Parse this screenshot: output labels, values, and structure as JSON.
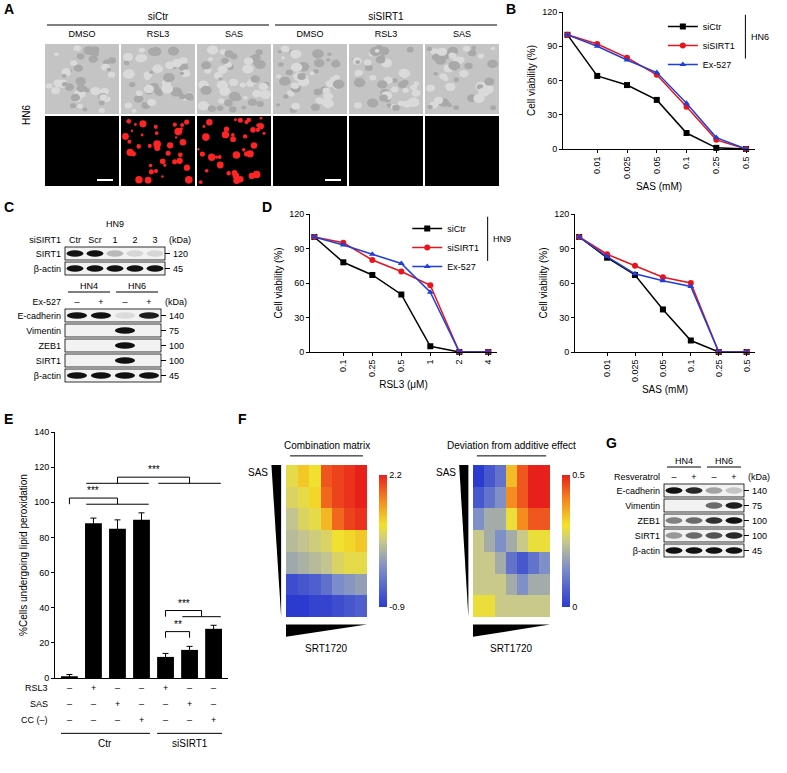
{
  "panel_labels": [
    "A",
    "B",
    "C",
    "D",
    "E",
    "F",
    "G"
  ],
  "panel_A": {
    "groups": [
      {
        "label": "siCtr",
        "columns": [
          0,
          1,
          2
        ]
      },
      {
        "label": "siSIRT1",
        "columns": [
          3,
          4,
          5
        ]
      }
    ],
    "columns": [
      "DMSO",
      "RSL3",
      "SAS",
      "DMSO",
      "RSL3",
      "SAS"
    ],
    "row_label": "HN6",
    "lipid_peroxidation_signal": [
      false,
      true,
      true,
      false,
      false,
      false
    ]
  },
  "panel_C": {
    "blots": [
      {
        "headers": [
          {
            "label": "HN9",
            "lanes": [
              0,
              1,
              2,
              3,
              4
            ]
          }
        ],
        "lanes": {
          "label": "siSIRT1",
          "values": [
            "Ctr",
            "Scr",
            "1",
            "2",
            "3"
          ]
        },
        "unit": "(kDa)",
        "rows": [
          {
            "label": "SIRT1",
            "kda": "120",
            "bands": [
              1,
              1,
              0.25,
              0.12,
              0.12
            ]
          },
          {
            "label": "β-actin",
            "kda": "45",
            "bands": [
              1,
              1,
              1,
              1,
              1
            ]
          }
        ]
      },
      {
        "headers": [
          {
            "label": "HN4",
            "lanes": [
              0,
              1
            ]
          },
          {
            "label": "HN6",
            "lanes": [
              2,
              3
            ]
          }
        ],
        "lanes": {
          "label": "Ex-527",
          "values": [
            "–",
            "+",
            "–",
            "+"
          ]
        },
        "unit": "(kDa)",
        "rows": [
          {
            "label": "E-cadherin",
            "kda": "140",
            "bands": [
              1,
              1,
              0.1,
              0.95
            ]
          },
          {
            "label": "Vimentin",
            "kda": "75",
            "bands": [
              0,
              0,
              1,
              0
            ]
          },
          {
            "label": "ZEB1",
            "kda": "100",
            "bands": [
              0,
              0,
              1,
              0
            ]
          },
          {
            "label": "SIRT1",
            "kda": "100",
            "bands": [
              0,
              0,
              1,
              0
            ]
          },
          {
            "label": "β-actin",
            "kda": "45",
            "bands": [
              1,
              1,
              1,
              1
            ]
          }
        ]
      }
    ]
  },
  "panel_G": {
    "blots": [
      {
        "headers": [
          {
            "label": "HN4",
            "lanes": [
              0,
              1
            ]
          },
          {
            "label": "HN6",
            "lanes": [
              2,
              3
            ]
          }
        ],
        "lanes": {
          "label": "Resveratrol",
          "values": [
            "–",
            "+",
            "–",
            "+"
          ]
        },
        "unit": "(kDa)",
        "rows": [
          {
            "label": "E-cadherin",
            "kda": "140",
            "bands": [
              1,
              0.9,
              0.35,
              0.2
            ]
          },
          {
            "label": "Vimentin",
            "kda": "75",
            "bands": [
              0,
              0,
              0.6,
              0.95
            ]
          },
          {
            "label": "ZEB1",
            "kda": "100",
            "bands": [
              0.5,
              0.6,
              0.85,
              1
            ]
          },
          {
            "label": "SIRT1",
            "kda": "100",
            "bands": [
              0.4,
              0.6,
              0.7,
              0.9
            ]
          },
          {
            "label": "β-actin",
            "kda": "45",
            "bands": [
              1,
              1,
              1,
              1
            ]
          }
        ]
      }
    ]
  },
  "chart_data": [
    {
      "type": "line",
      "x_label": "SAS (mM)",
      "y_label": "Cell viability (%)",
      "categories": [
        null,
        "0.01",
        "0.025",
        "0.05",
        "0.1",
        "0.25",
        "0.5"
      ],
      "ylim": [
        0,
        120
      ],
      "yticks": [
        0,
        30,
        60,
        90,
        120
      ],
      "legend": "upper right",
      "annotations": [
        "HN6"
      ],
      "series": [
        {
          "name": "siCtr",
          "color": "#000000",
          "marker": "square",
          "values": [
            100,
            64,
            56,
            43,
            14,
            1,
            0
          ]
        },
        {
          "name": "siSIRT1",
          "color": "#e8141c",
          "marker": "circle",
          "values": [
            100,
            92,
            80,
            65,
            37,
            8,
            0
          ]
        },
        {
          "name": "Ex-527",
          "color": "#1f3fd8",
          "marker": "triangle-up",
          "values": [
            100,
            90,
            78,
            67,
            40,
            10,
            0
          ]
        }
      ]
    },
    {
      "type": "line",
      "x_label": "RSL3 (μM)",
      "y_label": "Cell viability (%)",
      "categories": [
        null,
        "0.1",
        "0.25",
        "0.5",
        "1",
        "2",
        "4"
      ],
      "ylim": [
        0,
        120
      ],
      "yticks": [
        0,
        30,
        60,
        90,
        120
      ],
      "legend": "upper right",
      "annotations": [
        "HN9"
      ],
      "series": [
        {
          "name": "siCtr",
          "color": "#000000",
          "marker": "square",
          "values": [
            100,
            78,
            67,
            50,
            5,
            0,
            0
          ]
        },
        {
          "name": "siSIRT1",
          "color": "#e8141c",
          "marker": "circle",
          "values": [
            100,
            95,
            80,
            70,
            58,
            0,
            0
          ]
        },
        {
          "name": "Ex-527",
          "color": "#1f3fd8",
          "marker": "triangle-up",
          "values": [
            100,
            93,
            85,
            77,
            52,
            0,
            0
          ]
        }
      ]
    },
    {
      "type": "line",
      "x_label": "SAS (mM)",
      "y_label": "Cell viability (%)",
      "categories": [
        null,
        "0.01",
        "0.025",
        "0.05",
        "0.1",
        "0.25",
        "0.5"
      ],
      "ylim": [
        0,
        120
      ],
      "yticks": [
        0,
        30,
        60,
        90,
        120
      ],
      "series": [
        {
          "name": "siCtr",
          "color": "#000000",
          "marker": "square",
          "values": [
            100,
            82,
            67,
            37,
            10,
            0,
            0
          ]
        },
        {
          "name": "siSIRT1",
          "color": "#e8141c",
          "marker": "circle",
          "values": [
            100,
            85,
            75,
            65,
            60,
            0,
            0
          ]
        },
        {
          "name": "Ex-527",
          "color": "#1f3fd8",
          "marker": "triangle-up",
          "values": [
            100,
            83,
            68,
            62,
            57,
            0,
            0
          ]
        }
      ]
    },
    {
      "type": "bar",
      "y_label": "%Cells undergoing lipid peroxidation",
      "categories": [
        null,
        null,
        null,
        null,
        null,
        null,
        null
      ],
      "values": [
        1,
        88,
        85,
        90,
        12,
        16,
        28
      ],
      "errors": [
        1,
        3,
        5,
        4,
        2,
        2,
        2
      ],
      "color": "#000000",
      "ylim": [
        0,
        140
      ],
      "yticks": [
        0,
        20,
        40,
        60,
        80,
        100,
        120,
        140
      ],
      "tick_labels": "y",
      "conditions": [
        {
          "label": "RSL3",
          "marks": [
            "–",
            "+",
            "–",
            "–",
            "+",
            "–",
            "–"
          ]
        },
        {
          "label": "SAS",
          "marks": [
            "–",
            "–",
            "+",
            "–",
            "–",
            "+",
            "–"
          ]
        },
        {
          "label": "CC (–)",
          "marks": [
            "–",
            "–",
            "–",
            "+",
            "–",
            "–",
            "+"
          ]
        }
      ],
      "groups": [
        {
          "label": "Ctr",
          "bars": [
            0,
            1,
            2,
            3
          ]
        },
        {
          "label": "siSIRT1",
          "bars": [
            4,
            5,
            6
          ]
        }
      ],
      "significance": [
        {
          "from": [
            0
          ],
          "to": [
            1,
            2,
            3
          ],
          "text": "***"
        },
        {
          "from": [
            1,
            2,
            3
          ],
          "to": [
            4,
            5,
            6
          ],
          "text": "***"
        },
        {
          "from": [
            4
          ],
          "to": [
            5
          ],
          "text": "**"
        },
        {
          "from": [
            4
          ],
          "to": [
            5,
            6
          ],
          "text": "***"
        }
      ]
    },
    {
      "type": "heatmap",
      "title": "Combination matrix",
      "x_label": "SRT1720",
      "y_label": "SAS",
      "tick_labels": false,
      "z": [
        [
          0.9,
          1.2,
          1.0,
          1.9,
          2.0,
          2.1,
          2.2
        ],
        [
          0.8,
          0.9,
          1.1,
          1.8,
          2.0,
          2.1,
          2.2
        ],
        [
          0.6,
          0.8,
          0.9,
          1.3,
          1.8,
          2.0,
          2.1
        ],
        [
          0.5,
          0.6,
          0.7,
          0.8,
          1.0,
          1.1,
          1.2
        ],
        [
          0.3,
          0.4,
          0.5,
          0.6,
          0.8,
          0.9,
          0.9
        ],
        [
          -0.7,
          -0.6,
          -0.5,
          -0.3,
          0.0,
          0.1,
          0.2
        ],
        [
          -0.9,
          -0.9,
          -0.8,
          -0.8,
          -0.7,
          -0.6,
          -0.5
        ]
      ],
      "zlim": [
        -0.9,
        2.2
      ],
      "zticks": [
        -0.9,
        2.2
      ]
    },
    {
      "type": "heatmap",
      "title": "Deviation from additive effect",
      "x_label": "SRT1720",
      "y_label": "SAS",
      "tick_labels": false,
      "z": [
        [
          0.0,
          0.05,
          0.1,
          0.35,
          0.45,
          0.5,
          0.5
        ],
        [
          0.05,
          0.1,
          0.15,
          0.4,
          0.45,
          0.5,
          0.5
        ],
        [
          0.15,
          0.2,
          0.2,
          0.3,
          0.4,
          0.45,
          0.45
        ],
        [
          0.25,
          0.2,
          0.15,
          0.2,
          0.25,
          0.3,
          0.3
        ],
        [
          0.25,
          0.25,
          0.2,
          0.1,
          0.05,
          0.1,
          0.15
        ],
        [
          0.25,
          0.25,
          0.25,
          0.2,
          0.15,
          0.2,
          0.2
        ],
        [
          0.3,
          0.3,
          0.25,
          0.25,
          0.25,
          0.25,
          0.25
        ]
      ],
      "zlim": [
        0,
        0.5
      ],
      "zticks": [
        0,
        0.5
      ]
    }
  ]
}
